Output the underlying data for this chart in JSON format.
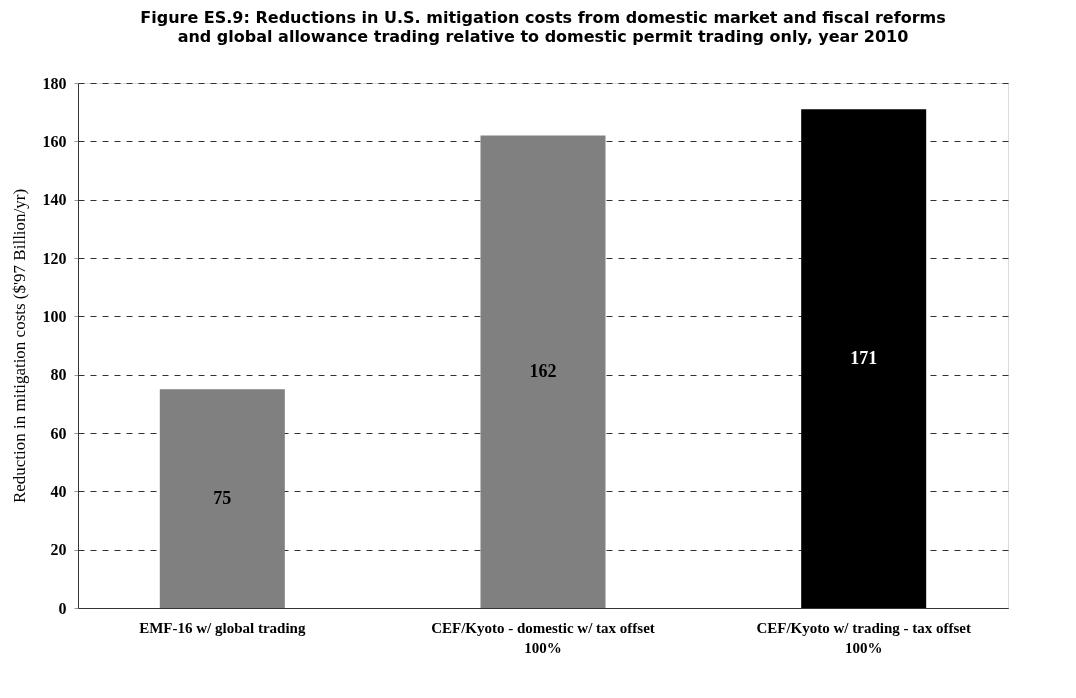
{
  "chart_data": {
    "type": "bar",
    "title": "Figure ES.9: Reductions in U.S. mitigation costs from domestic market and fiscal reforms\nand global allowance trading relative to domestic permit trading only, year 2010",
    "ylabel": "Reduction in mitigation costs ($'97 Billion/yr)",
    "categories": [
      "EMF-16 w/ global trading",
      "CEF/Kyoto - domestic w/ tax offset\n100%",
      "CEF/Kyoto w/ trading - tax offset\n100%"
    ],
    "values": [
      75,
      162,
      171
    ],
    "colors": [
      "#808080",
      "#808080",
      "#000000"
    ],
    "ylim": [
      0,
      180
    ],
    "yticks": [
      0,
      20,
      40,
      60,
      80,
      100,
      120,
      140,
      160,
      180
    ],
    "grid": "y",
    "data_labels": true
  }
}
